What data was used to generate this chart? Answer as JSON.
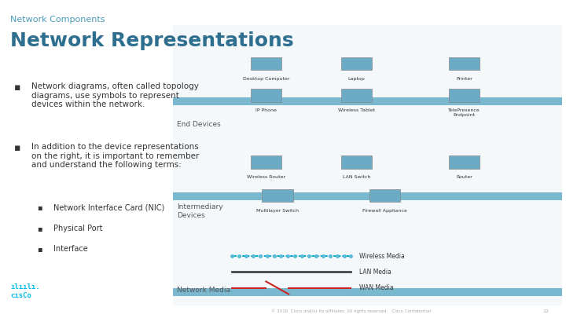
{
  "bg_color": "#ffffff",
  "header_subtitle": "Network Components",
  "header_title": "Network Representations",
  "header_subtitle_color": "#4a9ab5",
  "header_title_color": "#2e6e8e",
  "bullet_color": "#333333",
  "bullet_points": [
    "Network diagrams, often called topology\ndiagrams, use symbols to represent\ndevices within the network.",
    "In addition to the device representations\non the right, it is important to remember\nand understand the following terms:"
  ],
  "sub_bullets": [
    "Network Interface Card (NIC)",
    "Physical Port",
    "Interface"
  ],
  "panel_bg": "#f0f4f7",
  "panel_border_color": "#b0ccd8",
  "section_bar_color": "#6aacca",
  "section_bar_color2": "#8dc0d6",
  "end_devices_label": "End Devices",
  "intermediary_label": "Intermediary\nDevices",
  "network_media_label": "Network Media",
  "end_devices": [
    {
      "name": "Desktop Computer",
      "col": 0.38,
      "row": 0.18
    },
    {
      "name": "Laptop",
      "col": 0.58,
      "row": 0.18
    },
    {
      "name": "Printer",
      "col": 0.78,
      "row": 0.18
    },
    {
      "name": "IP Phone",
      "col": 0.38,
      "row": 0.3
    },
    {
      "name": "Wireless Tablet",
      "col": 0.58,
      "row": 0.3
    },
    {
      "name": "TelePresence\nEndpoint",
      "col": 0.78,
      "row": 0.3
    }
  ],
  "intermediary_devices": [
    {
      "name": "Wireless Router",
      "col": 0.38,
      "row": 0.52
    },
    {
      "name": "LAN Switch",
      "col": 0.58,
      "row": 0.52
    },
    {
      "name": "Router",
      "col": 0.78,
      "row": 0.52
    },
    {
      "name": "Multilayer Switch",
      "col": 0.43,
      "row": 0.63
    },
    {
      "name": "Firewall Appliance",
      "col": 0.68,
      "row": 0.63
    }
  ],
  "media_items": [
    {
      "name": "Wireless Media",
      "type": "wireless",
      "row": 0.76
    },
    {
      "name": "LAN Media",
      "type": "lan",
      "row": 0.83
    },
    {
      "name": "WAN Media",
      "type": "wan",
      "row": 0.9
    }
  ],
  "footer_text": "© 2016  Cisco and/or its affiliates. All rights reserved.   Cisco Confidential",
  "page_num": "22",
  "cisco_logo_color": "#00bceb"
}
